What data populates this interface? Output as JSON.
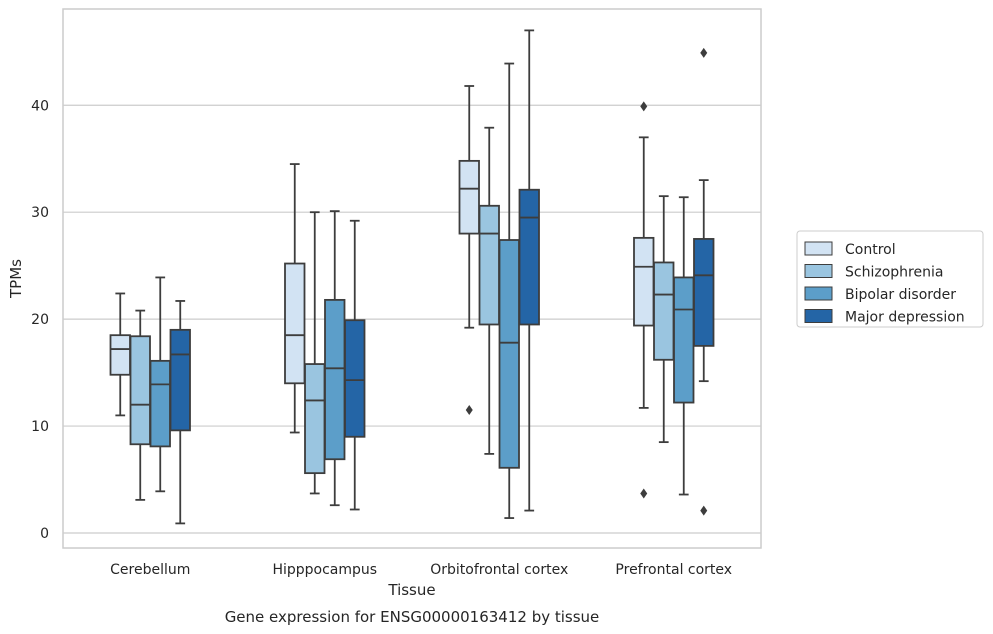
{
  "chart_data": {
    "type": "boxplot",
    "xlabel": "Tissue",
    "ylabel": "TPMs",
    "caption": "Gene expression for ENSG00000163412 by tissue",
    "categories": [
      "Cerebellum",
      "Hipppocampus",
      "Orbitofrontal cortex",
      "Prefrontal cortex"
    ],
    "yticks": [
      0,
      10,
      20,
      30,
      40
    ],
    "ylim": [
      -1.4,
      49
    ],
    "grid": "horizontal",
    "legend_position": "right",
    "series": [
      {
        "name": "Control",
        "color": "#d2e3f3",
        "boxes": [
          {
            "whislo": 11.0,
            "q1": 14.8,
            "med": 17.2,
            "q3": 18.5,
            "whishi": 22.4,
            "fliers": []
          },
          {
            "whislo": 9.4,
            "q1": 14.0,
            "med": 18.5,
            "q3": 25.2,
            "whishi": 34.5,
            "fliers": []
          },
          {
            "whislo": 19.2,
            "q1": 28.0,
            "med": 32.2,
            "q3": 34.8,
            "whishi": 41.8,
            "fliers": [
              11.5
            ]
          },
          {
            "whislo": 11.7,
            "q1": 19.4,
            "med": 24.9,
            "q3": 27.6,
            "whishi": 37.0,
            "fliers": [
              39.9,
              3.7
            ]
          }
        ]
      },
      {
        "name": "Schizophrenia",
        "color": "#9ac5e0",
        "boxes": [
          {
            "whislo": 3.1,
            "q1": 8.3,
            "med": 12.0,
            "q3": 18.4,
            "whishi": 20.8,
            "fliers": []
          },
          {
            "whislo": 3.7,
            "q1": 5.6,
            "med": 12.4,
            "q3": 15.8,
            "whishi": 30.0,
            "fliers": []
          },
          {
            "whislo": 7.4,
            "q1": 19.5,
            "med": 28.0,
            "q3": 30.6,
            "whishi": 37.9,
            "fliers": []
          },
          {
            "whislo": 8.5,
            "q1": 16.2,
            "med": 22.3,
            "q3": 25.3,
            "whishi": 31.5,
            "fliers": []
          }
        ]
      },
      {
        "name": "Bipolar disorder",
        "color": "#5c9ec9",
        "boxes": [
          {
            "whislo": 3.9,
            "q1": 8.1,
            "med": 13.9,
            "q3": 16.1,
            "whishi": 23.9,
            "fliers": []
          },
          {
            "whislo": 2.6,
            "q1": 6.9,
            "med": 15.4,
            "q3": 21.8,
            "whishi": 30.1,
            "fliers": []
          },
          {
            "whislo": 1.4,
            "q1": 6.1,
            "med": 17.8,
            "q3": 27.4,
            "whishi": 43.9,
            "fliers": []
          },
          {
            "whislo": 3.6,
            "q1": 12.2,
            "med": 20.9,
            "q3": 23.9,
            "whishi": 31.4,
            "fliers": []
          }
        ]
      },
      {
        "name": "Major depression",
        "color": "#2465a6",
        "boxes": [
          {
            "whislo": 0.9,
            "q1": 9.6,
            "med": 16.7,
            "q3": 19.0,
            "whishi": 21.7,
            "fliers": []
          },
          {
            "whislo": 2.2,
            "q1": 9.0,
            "med": 14.3,
            "q3": 19.9,
            "whishi": 29.2,
            "fliers": []
          },
          {
            "whislo": 2.1,
            "q1": 19.5,
            "med": 29.5,
            "q3": 32.1,
            "whishi": 47.0,
            "fliers": []
          },
          {
            "whislo": 14.2,
            "q1": 17.5,
            "med": 24.1,
            "q3": 27.5,
            "whishi": 33.0,
            "fliers": [
              44.9,
              2.1
            ]
          }
        ]
      }
    ]
  }
}
